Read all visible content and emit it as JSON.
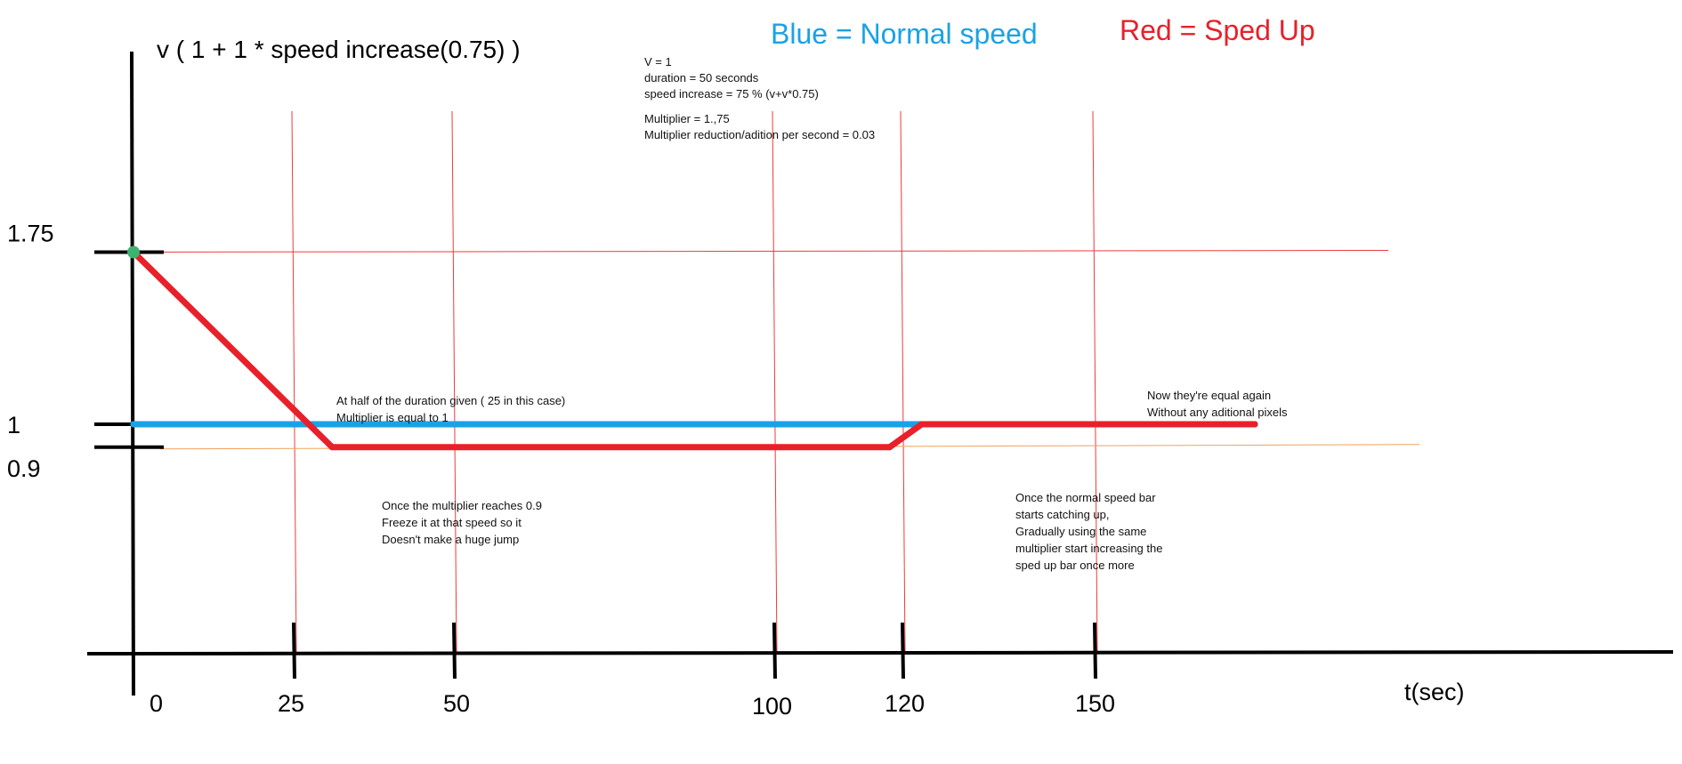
{
  "chart_data": {
    "type": "line",
    "title": "v ( 1 + 1  * speed increase(0.75) )",
    "xlabel": "t(sec)",
    "ylabel": "",
    "x_ticks": [
      0,
      25,
      50,
      100,
      120,
      150
    ],
    "x_tick_labels": [
      "0",
      "25",
      "50",
      "100",
      "120",
      "150"
    ],
    "y_ticks": [
      1.75,
      1,
      0.9
    ],
    "y_tick_labels": [
      "1.75",
      "1",
      "0.9"
    ],
    "xlim": [
      0,
      175
    ],
    "ylim": [
      0,
      2.2
    ],
    "grid": false,
    "legend_position": "top",
    "legend": [
      {
        "label": "Blue = Normal speed",
        "color": "#19A2E6"
      },
      {
        "label": "Red = Sped Up",
        "color": "#E8202A"
      }
    ],
    "series": [
      {
        "color": "#19A2E6",
        "points": [
          [
            0,
            1
          ],
          [
            175,
            1
          ]
        ]
      },
      {
        "color": "#E8202A",
        "points": [
          [
            0,
            1.75
          ],
          [
            31,
            0.9
          ],
          [
            118,
            0.9
          ],
          [
            123,
            1
          ],
          [
            175,
            1
          ]
        ]
      }
    ],
    "info_box": [
      "V = 1",
      "duration = 50 seconds",
      "speed increase = 75 % (v+v*0.75)",
      "Multiplier = 1.,75",
      "Multiplier reduction/adition per second = 0.03"
    ],
    "annotations": [
      {
        "id": "half",
        "x": 25,
        "y": 1.18,
        "lines": [
          "At half of the duration given ( 25 in this case)",
          "Multiplier is equal to 1"
        ]
      },
      {
        "id": "freeze",
        "x": 31,
        "y": 0.72,
        "lines": [
          "Once the multiplier reaches 0.9",
          "Freeze it at that speed so it",
          "Doesn't make a huge jump"
        ]
      },
      {
        "id": "catch",
        "x": 110,
        "y": 0.73,
        "lines": [
          "Once the normal speed bar",
          "starts catching up,",
          "Gradually using the same",
          "multiplier start increasing the",
          "sped up bar once more"
        ]
      },
      {
        "id": "equal",
        "x": 125,
        "y": 1.19,
        "lines": [
          "Now they're equal again",
          "Without any aditional pixels"
        ]
      }
    ]
  }
}
